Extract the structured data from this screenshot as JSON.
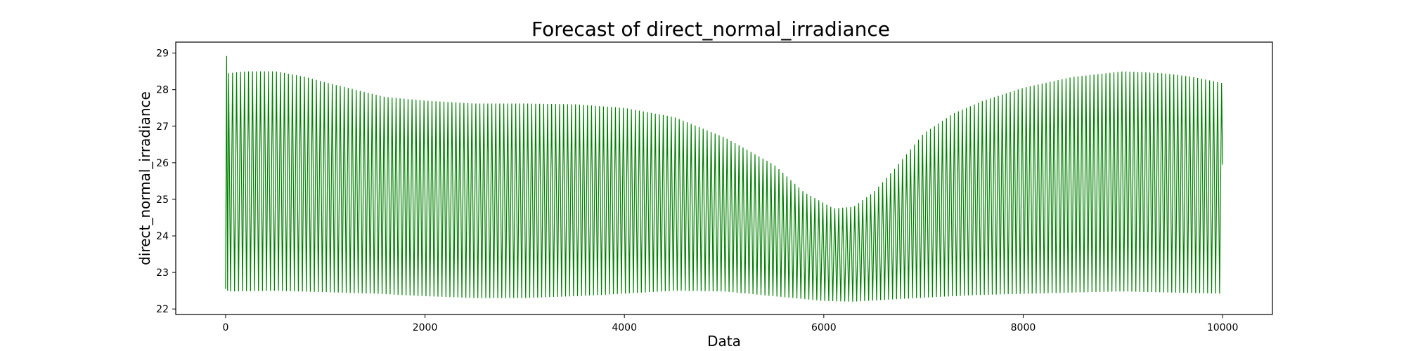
{
  "chart_data": {
    "type": "line",
    "title": "Forecast of direct_normal_irradiance",
    "xlabel": "Data",
    "ylabel": "direct_normal_irradiance",
    "xlim": [
      -500,
      10500
    ],
    "ylim": [
      21.85,
      29.3
    ],
    "x_ticks": [
      0,
      2000,
      4000,
      6000,
      8000,
      10000
    ],
    "y_ticks": [
      22,
      23,
      24,
      25,
      26,
      27,
      28,
      29
    ],
    "grid": false,
    "legend": "none",
    "series": [
      {
        "color": "#008000",
        "start_x": 0,
        "end_x": 10000,
        "initial_points": [
          {
            "x": 0,
            "y": 22.55
          },
          {
            "x": 10,
            "y": 28.92
          },
          {
            "x": 20,
            "y": 22.5
          }
        ],
        "final_value": 25.95,
        "upper_envelope": [
          {
            "x": 30,
            "y": 28.45
          },
          {
            "x": 200,
            "y": 28.5
          },
          {
            "x": 500,
            "y": 28.5
          },
          {
            "x": 800,
            "y": 28.35
          },
          {
            "x": 1000,
            "y": 28.2
          },
          {
            "x": 1300,
            "y": 28.0
          },
          {
            "x": 1600,
            "y": 27.8
          },
          {
            "x": 2000,
            "y": 27.7
          },
          {
            "x": 2500,
            "y": 27.62
          },
          {
            "x": 3000,
            "y": 27.62
          },
          {
            "x": 3500,
            "y": 27.6
          },
          {
            "x": 4000,
            "y": 27.5
          },
          {
            "x": 4500,
            "y": 27.25
          },
          {
            "x": 5000,
            "y": 26.7
          },
          {
            "x": 5500,
            "y": 25.95
          },
          {
            "x": 5800,
            "y": 25.2
          },
          {
            "x": 6100,
            "y": 24.75
          },
          {
            "x": 6300,
            "y": 24.8
          },
          {
            "x": 6500,
            "y": 25.2
          },
          {
            "x": 6700,
            "y": 25.8
          },
          {
            "x": 7000,
            "y": 26.8
          },
          {
            "x": 7300,
            "y": 27.35
          },
          {
            "x": 7600,
            "y": 27.7
          },
          {
            "x": 8000,
            "y": 28.05
          },
          {
            "x": 8500,
            "y": 28.35
          },
          {
            "x": 9000,
            "y": 28.5
          },
          {
            "x": 9400,
            "y": 28.45
          },
          {
            "x": 9700,
            "y": 28.35
          },
          {
            "x": 10000,
            "y": 28.18
          }
        ],
        "lower_envelope": [
          {
            "x": 30,
            "y": 22.48
          },
          {
            "x": 500,
            "y": 22.5
          },
          {
            "x": 1500,
            "y": 22.42
          },
          {
            "x": 2000,
            "y": 22.35
          },
          {
            "x": 2500,
            "y": 22.3
          },
          {
            "x": 3000,
            "y": 22.3
          },
          {
            "x": 3500,
            "y": 22.35
          },
          {
            "x": 4000,
            "y": 22.42
          },
          {
            "x": 4500,
            "y": 22.5
          },
          {
            "x": 5000,
            "y": 22.48
          },
          {
            "x": 5500,
            "y": 22.35
          },
          {
            "x": 6000,
            "y": 22.22
          },
          {
            "x": 6300,
            "y": 22.2
          },
          {
            "x": 6800,
            "y": 22.28
          },
          {
            "x": 7500,
            "y": 22.38
          },
          {
            "x": 8500,
            "y": 22.45
          },
          {
            "x": 9000,
            "y": 22.48
          },
          {
            "x": 9500,
            "y": 22.45
          },
          {
            "x": 10000,
            "y": 22.42
          }
        ],
        "oscillation_period": 40
      }
    ]
  }
}
